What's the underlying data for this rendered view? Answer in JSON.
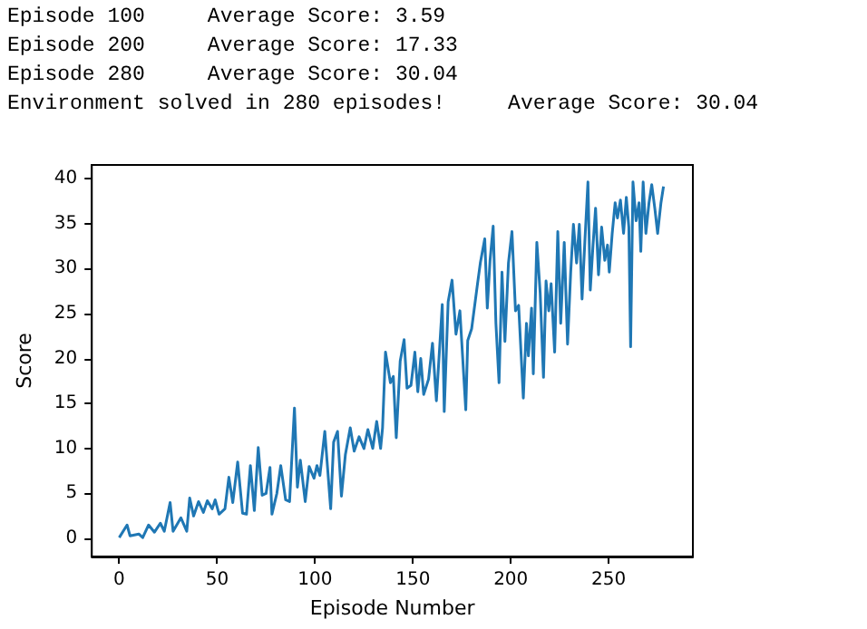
{
  "chart_data": {
    "type": "line",
    "xlabel": "Episode Number",
    "ylabel": "Score",
    "annotations": [
      "Episode 100\tAverage Score: 3.59",
      "Episode 200\tAverage Score: 17.33",
      "Episode 280\tAverage Score: 30.04",
      "Environment solved in 280 episodes!\tAverage Score: 30.04"
    ],
    "xlim": [
      -14,
      293
    ],
    "xticks": [
      0,
      50,
      100,
      150,
      200,
      250
    ],
    "ylim": [
      -2,
      41.5
    ],
    "yticks": [
      0,
      5,
      10,
      15,
      20,
      25,
      30,
      35,
      40
    ],
    "grid": false,
    "marker": "none",
    "line_style": "solid",
    "series": [
      {
        "color": "#1f77b4",
        "x": [
          0,
          4,
          5.5,
          10,
          12,
          15,
          18,
          21,
          23,
          26,
          27.5,
          31.5,
          34.5,
          36,
          38,
          40.5,
          43,
          45,
          47.5,
          49,
          51,
          54,
          56,
          58,
          60.5,
          63,
          65,
          67,
          69,
          71,
          73,
          75,
          77,
          78,
          80.5,
          82.5,
          85,
          87,
          89.5,
          91,
          92.5,
          95,
          97,
          99.5,
          101,
          102.5,
          105,
          108,
          109.5,
          111.5,
          113.5,
          115.5,
          118,
          120,
          122.5,
          125,
          127,
          129.5,
          131.5,
          133.5,
          134.5,
          136,
          138.5,
          140,
          141.5,
          143.5,
          145.5,
          147,
          149,
          151,
          152.5,
          154,
          155.5,
          158,
          160,
          162,
          165,
          166,
          168,
          170,
          172,
          174,
          177,
          178,
          180,
          183,
          184.5,
          186.7,
          188,
          189.4,
          191,
          192.4,
          194,
          195.5,
          197,
          198.8,
          200.6,
          202.4,
          204,
          206.4,
          208,
          209,
          210.6,
          211.5,
          213.3,
          215,
          216.7,
          218,
          219.4,
          220.6,
          222.4,
          224,
          225.5,
          227.3,
          229,
          230.6,
          232,
          233.6,
          235,
          236.4,
          237.9,
          239.4,
          240.6,
          242,
          243.3,
          244.8,
          246.4,
          248,
          249.4,
          250.3,
          251.8,
          253.3,
          254.5,
          256,
          257.6,
          259,
          260.3,
          261.2,
          262.4,
          264,
          265.5,
          266.4,
          267.6,
          269,
          270.6,
          272,
          273.6,
          275,
          276.7,
          278
        ],
        "values": [
          0.1,
          1.5,
          0.3,
          0.5,
          0.1,
          1.5,
          0.7,
          1.7,
          0.8,
          4,
          0.8,
          2.3,
          0.8,
          4.5,
          2.5,
          4.1,
          2.9,
          4.2,
          3.3,
          4.3,
          2.7,
          3.3,
          6.8,
          4,
          8.5,
          2.8,
          2.7,
          8.1,
          3.1,
          10.1,
          4.8,
          5,
          7.9,
          2.7,
          5,
          8.1,
          4.3,
          4.1,
          14.5,
          5.7,
          8.7,
          4.1,
          8,
          6.7,
          8.1,
          7,
          11.9,
          3.3,
          10.7,
          11.9,
          4.7,
          9.3,
          12.3,
          9.7,
          11.3,
          10,
          12.1,
          10,
          13,
          10,
          12.3,
          20.7,
          17.3,
          18,
          11.2,
          19.7,
          22.1,
          16.7,
          17,
          20.7,
          16.3,
          20,
          16,
          17.7,
          21.7,
          15.3,
          26,
          14.1,
          26.3,
          28.7,
          22.7,
          25.3,
          14.3,
          22,
          23.3,
          28.3,
          30.7,
          33.3,
          25.6,
          30.9,
          34.7,
          23.9,
          17.3,
          29.6,
          21.9,
          30.6,
          34.1,
          25.3,
          25.9,
          15.6,
          23.9,
          20.3,
          25.6,
          18.3,
          32.9,
          27.3,
          17.9,
          28.6,
          25.3,
          28.3,
          20.7,
          34.1,
          23.9,
          32.9,
          21.6,
          29.6,
          34.9,
          30.6,
          34.9,
          26.6,
          33.3,
          39.6,
          27.6,
          32.6,
          36.7,
          29.3,
          34.6,
          30.9,
          32.6,
          29.6,
          33.9,
          37.3,
          35.6,
          37.6,
          33.9,
          37.9,
          34.6,
          21.3,
          39.6,
          35.3,
          37.3,
          31.9,
          39.6,
          33.9,
          37.3,
          39.3,
          36.6,
          33.9,
          37.3,
          39.1
        ]
      }
    ]
  }
}
